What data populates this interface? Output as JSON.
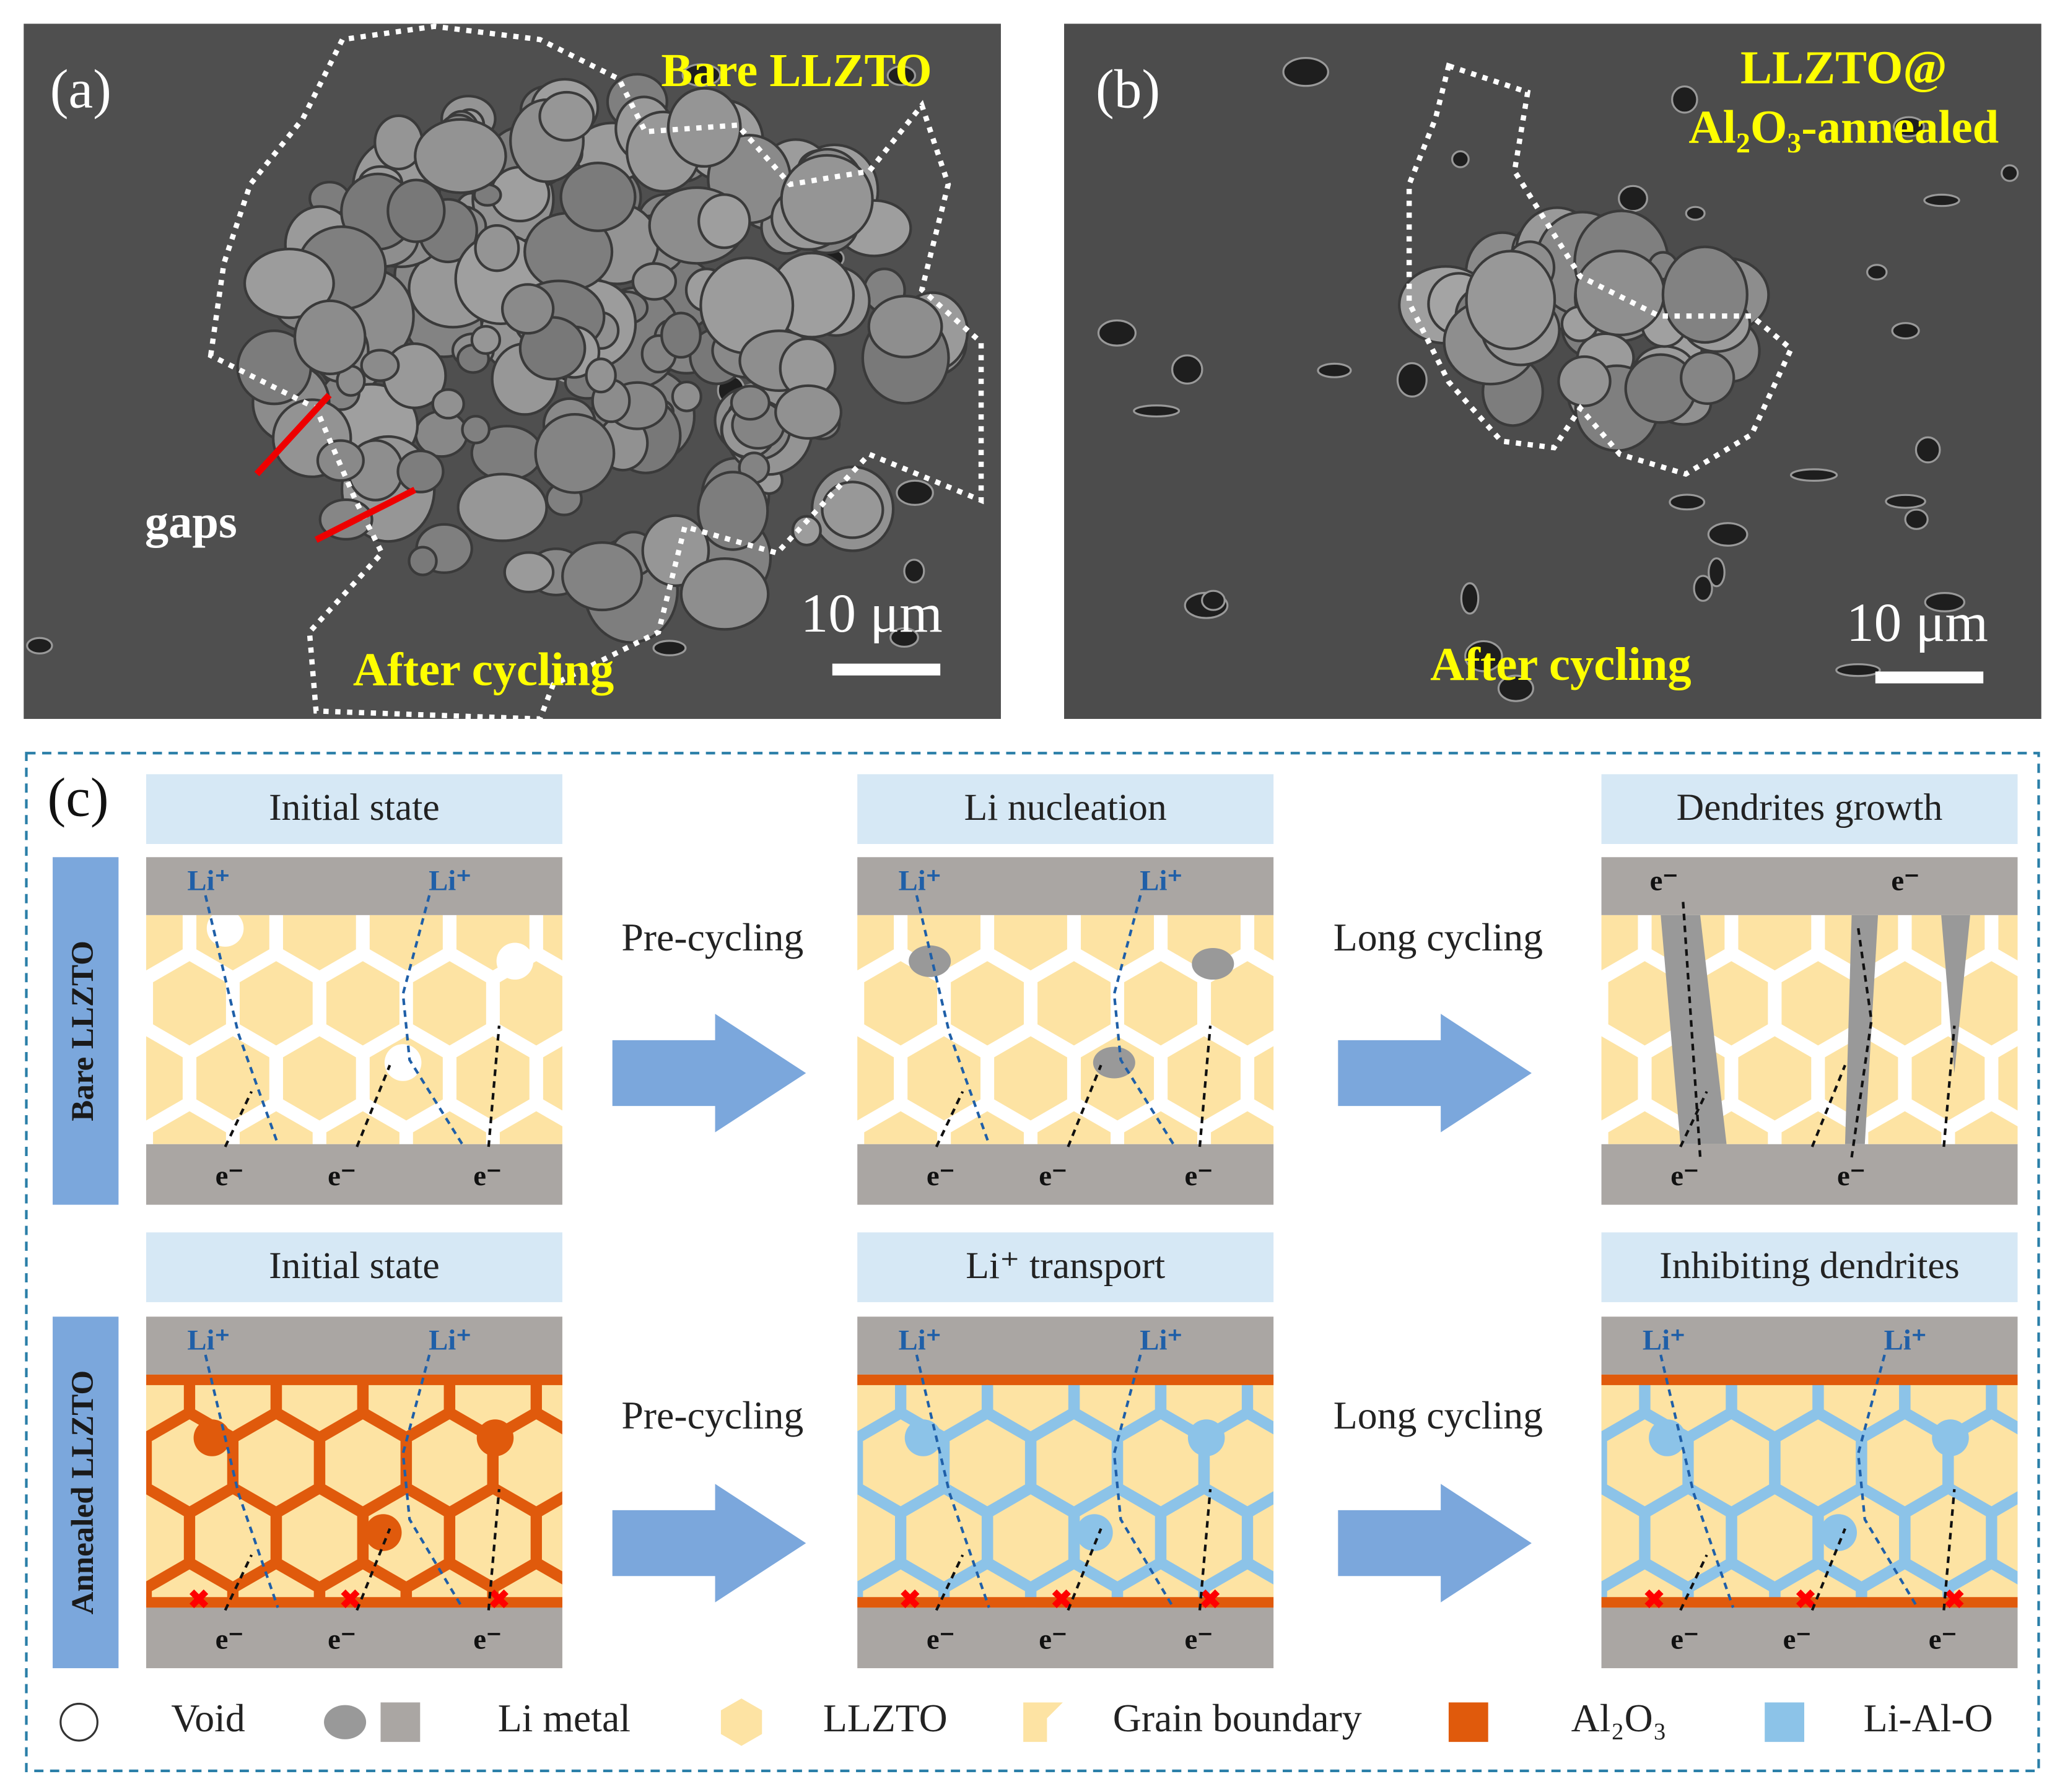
{
  "panel_a": {
    "label": "(a)",
    "title": "Bare LLZTO",
    "annotation": "gaps",
    "caption": "After cycling",
    "scale_bar": "10 μm"
  },
  "panel_b": {
    "label": "(b)",
    "title_lines": [
      "LLZTO@",
      "Al₂O₃-annealed"
    ],
    "caption": "After cycling",
    "scale_bar": "10 μm"
  },
  "panel_c": {
    "label": "(c)",
    "rows": [
      {
        "label": "Bare LLZTO",
        "transitions": [
          "Pre-cycling",
          "Long cycling"
        ],
        "stages": [
          {
            "header": "Initial state",
            "top_labels": [
              "Li⁺",
              "Li⁺"
            ],
            "bottom_labels": [
              "e⁻",
              "e⁻",
              "e⁻"
            ]
          },
          {
            "header": "Li nucleation",
            "top_labels": [
              "Li⁺",
              "Li⁺"
            ],
            "bottom_labels": [
              "e⁻",
              "e⁻",
              "e⁻"
            ]
          },
          {
            "header": "Dendrites growth",
            "top_labels": [
              "e⁻",
              "e⁻"
            ],
            "bottom_labels": [
              "e⁻",
              "e⁻"
            ]
          }
        ]
      },
      {
        "label": "Annealed LLZTO",
        "transitions": [
          "Pre-cycling",
          "Long cycling"
        ],
        "stages": [
          {
            "header": "Initial state",
            "top_labels": [
              "Li⁺",
              "Li⁺"
            ],
            "bottom_labels": [
              "e⁻",
              "e⁻",
              "e⁻"
            ]
          },
          {
            "header": "Li⁺ transport",
            "top_labels": [
              "Li⁺",
              "Li⁺"
            ],
            "bottom_labels": [
              "e⁻",
              "e⁻",
              "e⁻"
            ]
          },
          {
            "header": "Inhibiting dendrites",
            "top_labels": [
              "Li⁺",
              "Li⁺"
            ],
            "bottom_labels": [
              "e⁻",
              "e⁻",
              "e⁻"
            ]
          }
        ]
      }
    ],
    "legend": [
      "Void",
      "Li metal",
      "LLZTO",
      "Grain boundary",
      "Al₂O₃",
      "Li-Al-O"
    ]
  }
}
